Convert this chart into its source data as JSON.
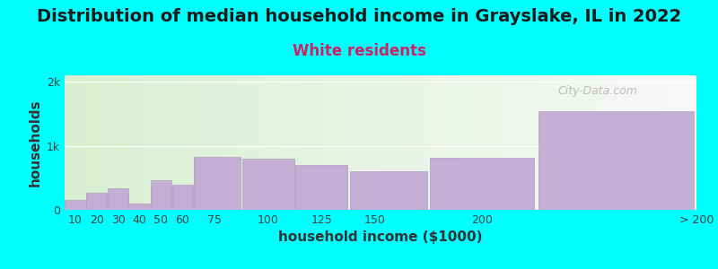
{
  "title": "Distribution of median household income in Grayslake, IL in 2022",
  "subtitle": "White residents",
  "xlabel": "household income ($1000)",
  "ylabel": "households",
  "background_color": "#00FFFF",
  "plot_bg_gradient_left": "#d8f0d0",
  "plot_bg_gradient_right": "#f8f8f8",
  "bar_color": "#c4aed4",
  "bar_edge_color": "#b09cc0",
  "bar_left_edges": [
    5,
    15,
    25,
    35,
    45,
    55,
    65,
    87.5,
    112.5,
    137.5,
    175,
    225
  ],
  "bar_widths": [
    10,
    10,
    10,
    10,
    10,
    10,
    22.5,
    25,
    25,
    37.5,
    50,
    75
  ],
  "values": [
    155,
    270,
    340,
    100,
    460,
    390,
    820,
    800,
    700,
    600,
    810,
    1540
  ],
  "xtick_positions": [
    10,
    20,
    30,
    40,
    50,
    60,
    75,
    100,
    125,
    150,
    200,
    300
  ],
  "xtick_labels": [
    "10",
    "20",
    "30",
    "40",
    "50",
    "60",
    "75",
    "100",
    "125",
    "150",
    "200",
    "> 200"
  ],
  "xlim": [
    5,
    300
  ],
  "ytick_labels": [
    "0",
    "1k",
    "2k"
  ],
  "ytick_values": [
    0,
    1000,
    2000
  ],
  "ylim": [
    0,
    2100
  ],
  "title_fontsize": 14,
  "subtitle_fontsize": 12,
  "axis_label_fontsize": 11,
  "tick_fontsize": 9,
  "watermark_text": "City-Data.com",
  "title_color": "#1a1a1a",
  "subtitle_color": "#cc2266",
  "axis_label_color": "#333333",
  "tick_color": "#444444",
  "watermark_color": "#aaaaaa",
  "grid_color": "#ffffff"
}
